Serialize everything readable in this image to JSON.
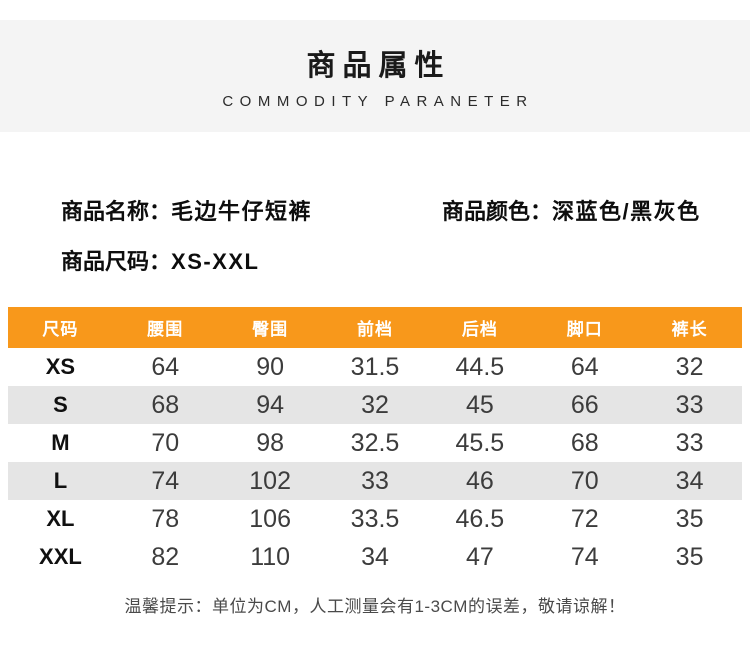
{
  "header": {
    "title": "商品属性",
    "subtitle": "COMMODITY PARANETER"
  },
  "product": {
    "name_label": "商品名称：",
    "name_value": "毛边牛仔短裤",
    "color_label": "商品颜色：",
    "color_value": "深蓝色/黑灰色",
    "size_label": "商品尺码：",
    "size_value": "XS-XXL"
  },
  "size_table": {
    "columns": [
      "尺码",
      "腰围",
      "臀围",
      "前档",
      "后档",
      "脚口",
      "裤长"
    ],
    "rows": [
      {
        "size": "XS",
        "values": [
          "64",
          "90",
          "31.5",
          "44.5",
          "64",
          "32"
        ],
        "striped": false
      },
      {
        "size": "S",
        "values": [
          "68",
          "94",
          "32",
          "45",
          "66",
          "33"
        ],
        "striped": true
      },
      {
        "size": "M",
        "values": [
          "70",
          "98",
          "32.5",
          "45.5",
          "68",
          "33"
        ],
        "striped": false
      },
      {
        "size": "L",
        "values": [
          "74",
          "102",
          "33",
          "46",
          "70",
          "34"
        ],
        "striped": true
      },
      {
        "size": "XL",
        "values": [
          "78",
          "106",
          "33.5",
          "46.5",
          "72",
          "35"
        ],
        "striped": false
      },
      {
        "size": "XXL",
        "values": [
          "82",
          "110",
          "34",
          "47",
          "74",
          "35"
        ],
        "striped": false
      }
    ]
  },
  "footer": {
    "note": "温馨提示：单位为CM，人工测量会有1-3CM的误差，敬请谅解！"
  },
  "colors": {
    "table_header_orange": "#f8981b",
    "row_stripe_gray": "#e5e5e5",
    "header_band_gray": "#f4f4f4"
  }
}
